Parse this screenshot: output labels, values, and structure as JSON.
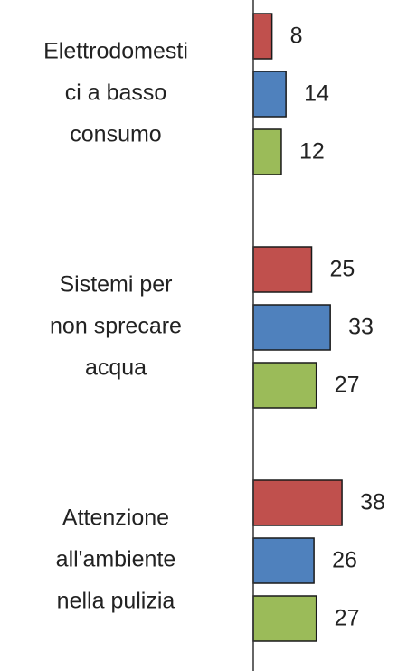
{
  "chart_data": {
    "type": "bar",
    "orientation": "horizontal",
    "categories": [
      [
        "Elettrodomesti",
        "ci a basso",
        "consumo"
      ],
      [
        "Sistemi per",
        "non sprecare",
        "acqua"
      ],
      [
        "Attenzione",
        "all'ambiente",
        "nella pulizia"
      ]
    ],
    "series": [
      {
        "color": "#c0504d",
        "values": [
          8,
          25,
          38
        ]
      },
      {
        "color": "#4f81bd",
        "values": [
          14,
          33,
          26
        ]
      },
      {
        "color": "#9bbb59",
        "values": [
          12,
          27,
          27
        ]
      }
    ],
    "xlim": [
      0,
      62
    ]
  }
}
